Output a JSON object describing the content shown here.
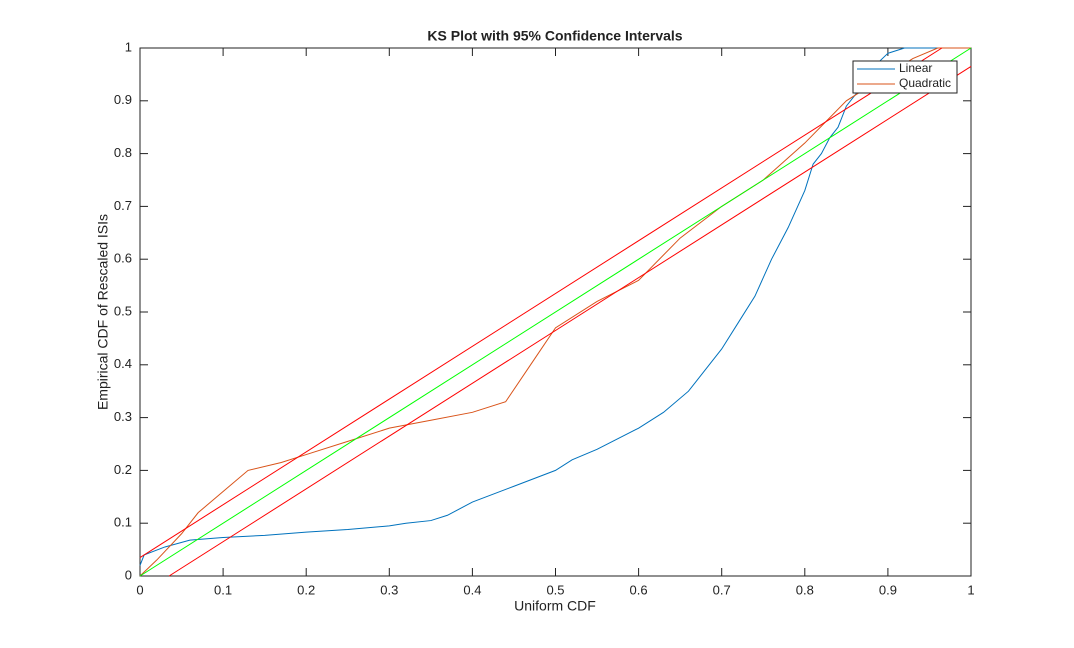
{
  "chart_data": {
    "type": "line",
    "title": "KS Plot with 95% Confidence Intervals",
    "x_label": "Uniform CDF",
    "y_label": "Empirical CDF of Rescaled ISIs",
    "xlim": [
      0,
      1
    ],
    "ylim": [
      0,
      1
    ],
    "xticks": [
      0,
      0.1,
      0.2,
      0.3,
      0.4,
      0.5,
      0.6,
      0.7,
      0.8,
      0.9,
      1
    ],
    "yticks": [
      0,
      0.1,
      0.2,
      0.3,
      0.4,
      0.5,
      0.6,
      0.7,
      0.8,
      0.9,
      1
    ],
    "legend": "top-right",
    "series": [
      {
        "name": "Linear",
        "color": "#0072bd",
        "x": [
          0,
          0.005,
          0.03,
          0.06,
          0.1,
          0.15,
          0.2,
          0.25,
          0.3,
          0.32,
          0.35,
          0.37,
          0.4,
          0.45,
          0.5,
          0.52,
          0.55,
          0.6,
          0.63,
          0.66,
          0.68,
          0.7,
          0.72,
          0.74,
          0.76,
          0.78,
          0.8,
          0.81,
          0.82,
          0.83,
          0.84,
          0.85,
          0.86,
          0.87,
          0.88,
          0.9,
          0.92,
          1
        ],
        "values": [
          0.02,
          0.04,
          0.055,
          0.068,
          0.073,
          0.077,
          0.083,
          0.088,
          0.095,
          0.1,
          0.105,
          0.115,
          0.14,
          0.17,
          0.2,
          0.22,
          0.24,
          0.28,
          0.31,
          0.35,
          0.39,
          0.43,
          0.48,
          0.53,
          0.6,
          0.66,
          0.73,
          0.78,
          0.8,
          0.83,
          0.85,
          0.89,
          0.91,
          0.93,
          0.96,
          0.99,
          1,
          1
        ]
      },
      {
        "name": "Quadratic",
        "color": "#d95319",
        "x": [
          0,
          0.02,
          0.05,
          0.07,
          0.1,
          0.13,
          0.17,
          0.2,
          0.25,
          0.3,
          0.35,
          0.4,
          0.44,
          0.47,
          0.5,
          0.55,
          0.6,
          0.65,
          0.7,
          0.75,
          0.8,
          0.85,
          0.9,
          0.93,
          0.96,
          1
        ],
        "values": [
          0,
          0.03,
          0.08,
          0.12,
          0.16,
          0.2,
          0.215,
          0.23,
          0.255,
          0.28,
          0.295,
          0.31,
          0.33,
          0.4,
          0.47,
          0.52,
          0.56,
          0.64,
          0.7,
          0.75,
          0.82,
          0.9,
          0.95,
          0.98,
          1,
          1
        ]
      },
      {
        "color": "#00ff00",
        "x": [
          0,
          1
        ],
        "values": [
          0,
          1
        ]
      },
      {
        "color": "#ff0000",
        "x": [
          0,
          0.965
        ],
        "values": [
          0.035,
          1
        ]
      },
      {
        "color": "#ff0000",
        "x": [
          0.035,
          1
        ],
        "values": [
          0,
          0.965
        ]
      }
    ]
  }
}
